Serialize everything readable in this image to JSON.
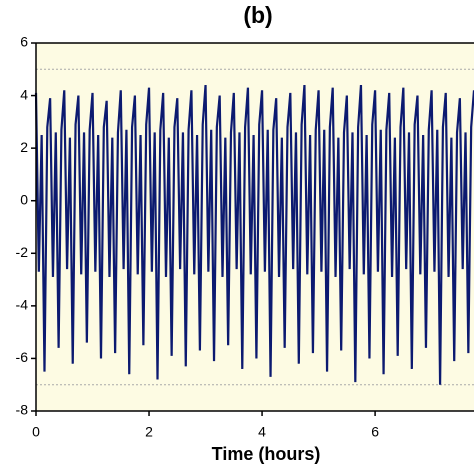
{
  "chart_data": {
    "type": "line",
    "title": "(b)",
    "x_label": "Time (hours)",
    "x": [
      0,
      0.05,
      0.1,
      0.15,
      0.2,
      0.25,
      0.3,
      0.35,
      0.4,
      0.45,
      0.5,
      0.55,
      0.6,
      0.65,
      0.7,
      0.75,
      0.8,
      0.85,
      0.9,
      0.95,
      1,
      1.05,
      1.1,
      1.15,
      1.2,
      1.25,
      1.3,
      1.35,
      1.4,
      1.45,
      1.5,
      1.55,
      1.6,
      1.65,
      1.7,
      1.75,
      1.8,
      1.85,
      1.9,
      1.95,
      2,
      2.05,
      2.1,
      2.15,
      2.2,
      2.25,
      2.3,
      2.35,
      2.4,
      2.45,
      2.5,
      2.55,
      2.6,
      2.65,
      2.7,
      2.75,
      2.8,
      2.85,
      2.9,
      2.95,
      3,
      3.05,
      3.1,
      3.15,
      3.2,
      3.25,
      3.3,
      3.35,
      3.4,
      3.45,
      3.5,
      3.55,
      3.6,
      3.65,
      3.7,
      3.75,
      3.8,
      3.85,
      3.9,
      3.95,
      4,
      4.05,
      4.1,
      4.15,
      4.2,
      4.25,
      4.3,
      4.35,
      4.4,
      4.45,
      4.5,
      4.55,
      4.6,
      4.65,
      4.7,
      4.75,
      4.8,
      4.85,
      4.9,
      4.95,
      5,
      5.05,
      5.1,
      5.15,
      5.2,
      5.25,
      5.3,
      5.35,
      5.4,
      5.45,
      5.5,
      5.55,
      5.6,
      5.65,
      5.7,
      5.75,
      5.8,
      5.85,
      5.9,
      5.95,
      6,
      6.05,
      6.1,
      6.15,
      6.2,
      6.25,
      6.3,
      6.35,
      6.4,
      6.45,
      6.5,
      6.55,
      6.6,
      6.65,
      6.7,
      6.75,
      6.8,
      6.85,
      6.9,
      6.95,
      7,
      7.05,
      7.1,
      7.15,
      7.2,
      7.25,
      7.3,
      7.35,
      7.4,
      7.45,
      7.5,
      7.55,
      7.6,
      7.65,
      7.7,
      7.75
    ],
    "series": [
      {
        "color": "#0c1a70",
        "values": [
          4.1,
          -2.7,
          2.5,
          -6.5,
          2.8,
          3.9,
          -2.9,
          2.6,
          -5.6,
          2.7,
          4.2,
          -2.6,
          2.4,
          -6.2,
          2.9,
          4.0,
          -2.8,
          2.6,
          -5.4,
          2.7,
          4.1,
          -2.7,
          2.5,
          -6.0,
          2.8,
          3.8,
          -2.9,
          2.4,
          -5.8,
          2.6,
          4.2,
          -2.6,
          2.7,
          -6.6,
          2.8,
          4.0,
          -2.8,
          2.5,
          -5.5,
          2.9,
          4.3,
          -2.7,
          2.6,
          -6.8,
          2.7,
          4.1,
          -2.9,
          2.4,
          -5.9,
          2.8,
          3.9,
          -2.6,
          2.6,
          -6.3,
          2.7,
          4.2,
          -2.8,
          2.5,
          -5.7,
          2.9,
          4.4,
          -2.7,
          2.7,
          -6.1,
          2.8,
          4.0,
          -2.9,
          2.4,
          -5.5,
          2.6,
          4.1,
          -2.6,
          2.6,
          -6.4,
          2.8,
          4.3,
          -2.8,
          2.5,
          -6.0,
          2.9,
          4.2,
          -2.7,
          2.7,
          -6.7,
          2.7,
          3.9,
          -2.9,
          2.4,
          -5.6,
          2.8,
          4.1,
          -2.6,
          2.6,
          -6.2,
          2.9,
          4.4,
          -2.8,
          2.5,
          -5.8,
          2.7,
          4.2,
          -2.7,
          2.7,
          -6.5,
          2.8,
          4.3,
          -2.9,
          2.4,
          -5.7,
          2.6,
          4.0,
          -2.6,
          2.6,
          -6.9,
          2.8,
          4.4,
          -2.8,
          2.5,
          -6.0,
          2.9,
          4.2,
          -2.7,
          2.7,
          -6.6,
          2.7,
          4.1,
          -2.9,
          2.4,
          -5.9,
          2.8,
          4.3,
          -2.6,
          2.6,
          -6.4,
          2.9,
          4.0,
          -2.8,
          2.5,
          -5.6,
          2.7,
          4.2,
          -2.7,
          2.7,
          -7.0,
          2.8,
          4.1,
          -2.9,
          2.4,
          -6.1,
          2.6,
          3.9,
          -2.6,
          2.6,
          -5.8,
          2.8,
          4.2
        ]
      }
    ],
    "xlim": [
      0,
      7.75
    ],
    "ylim": [
      -8,
      6
    ],
    "xticks": [
      0,
      2,
      4,
      6
    ],
    "yticks": [
      -8,
      -6,
      -4,
      -2,
      0,
      2,
      4,
      6
    ],
    "reference_lines": [
      5,
      -7
    ],
    "background": "#fdfbe3"
  }
}
